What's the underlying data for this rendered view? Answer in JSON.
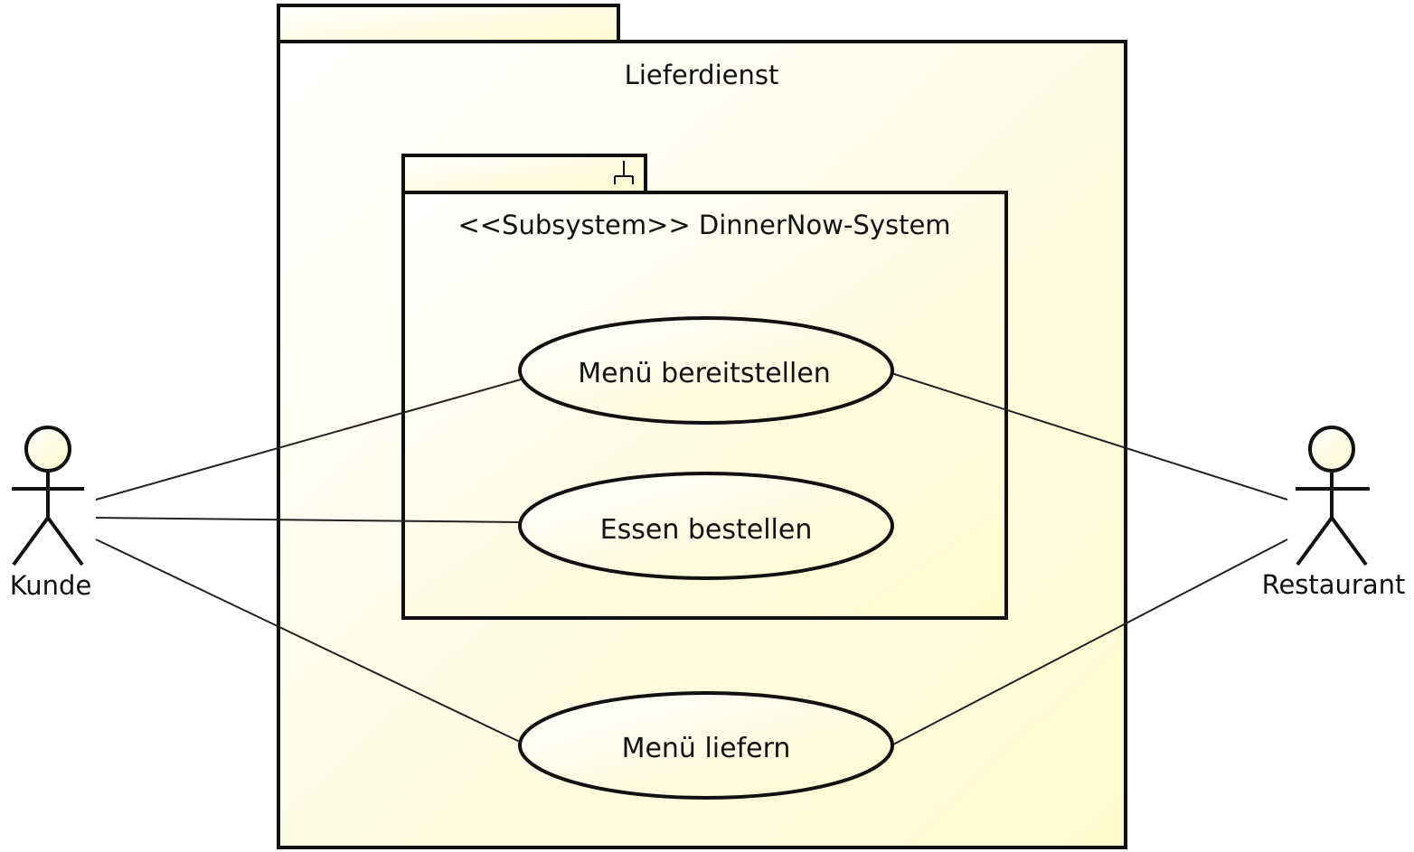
{
  "diagram": {
    "type": "uml-use-case",
    "package": {
      "label": "Lieferdienst"
    },
    "subsystem": {
      "label": "<<Subsystem>> DinnerNow-System",
      "icon": "subsystem-fork-icon"
    },
    "use_cases": [
      {
        "id": "menu-bereitstellen",
        "label": "Menü bereitstellen"
      },
      {
        "id": "essen-bestellen",
        "label": "Essen bestellen"
      },
      {
        "id": "menu-liefern",
        "label": "Menü liefern"
      }
    ],
    "actors": [
      {
        "id": "kunde",
        "label": "Kunde"
      },
      {
        "id": "restaurant",
        "label": "Restaurant"
      }
    ],
    "associations": [
      {
        "from": "kunde",
        "to": "menu-bereitstellen"
      },
      {
        "from": "kunde",
        "to": "essen-bestellen"
      },
      {
        "from": "kunde",
        "to": "menu-liefern"
      },
      {
        "from": "restaurant",
        "to": "menu-bereitstellen"
      },
      {
        "from": "restaurant",
        "to": "menu-liefern"
      }
    ],
    "colors": {
      "fill_light": "#ffffff",
      "fill_dark": "#fffacd",
      "stroke": "#111111"
    }
  }
}
